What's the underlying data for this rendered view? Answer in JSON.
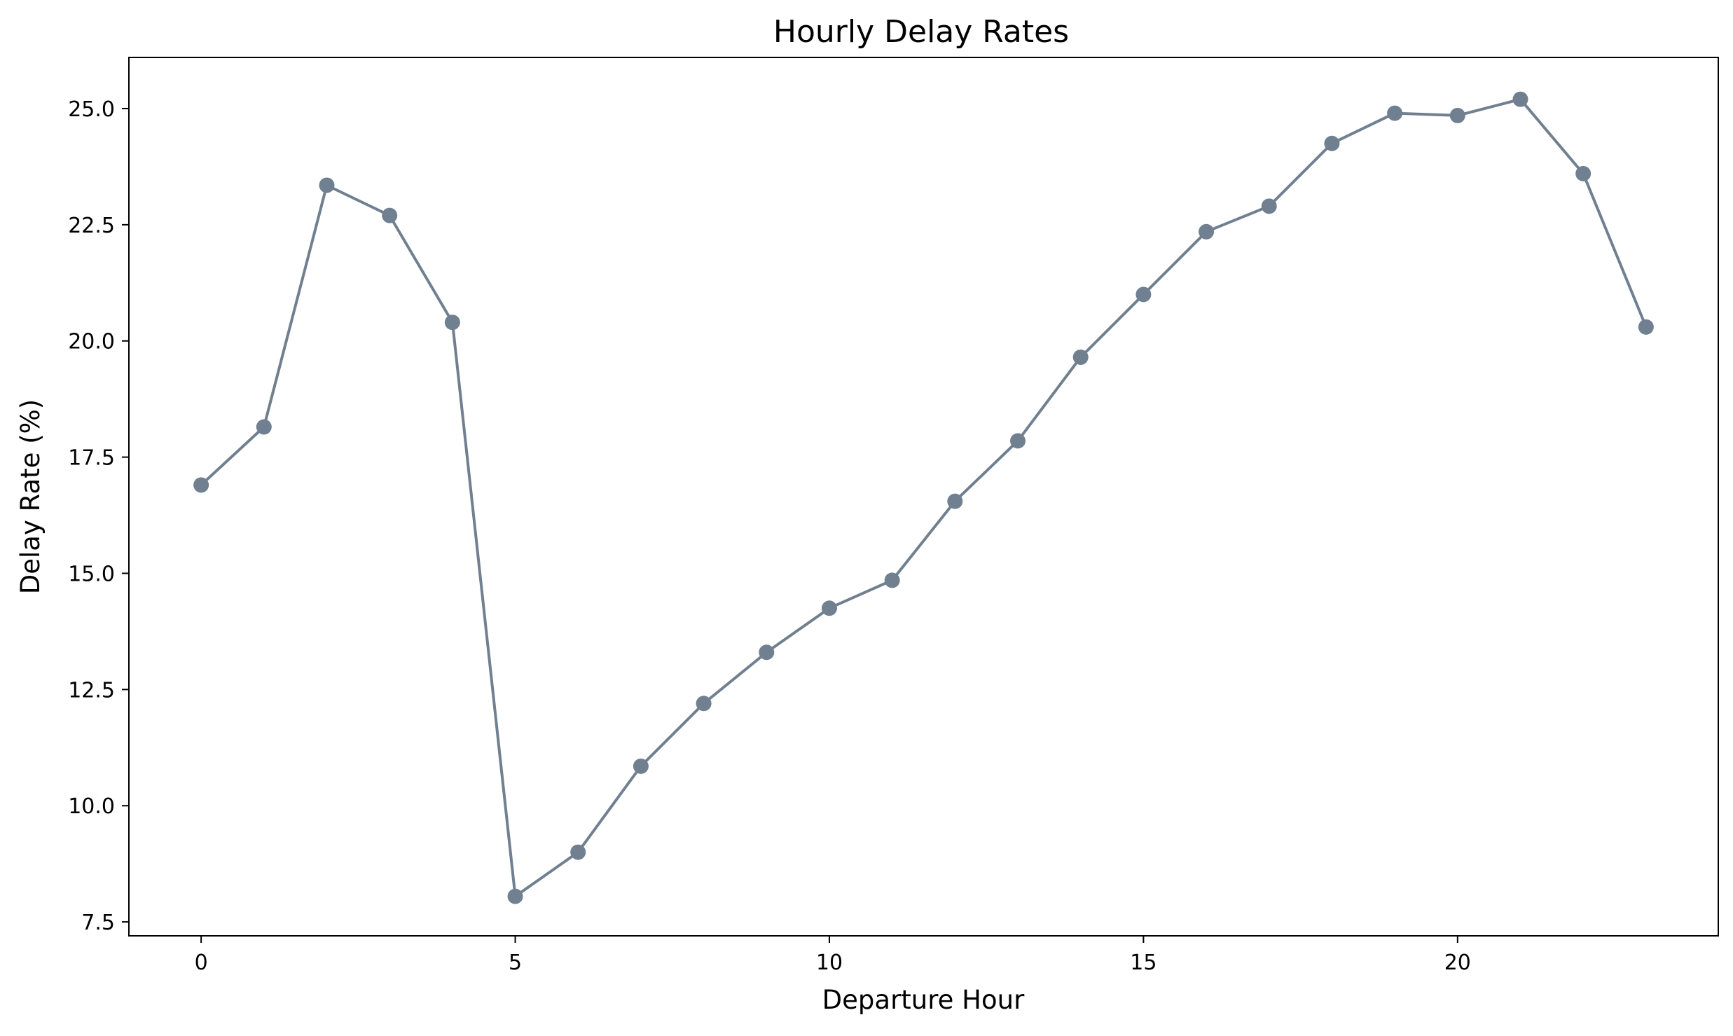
{
  "chart_data": {
    "type": "line",
    "title": "Hourly Delay Rates",
    "xlabel": "Departure Hour",
    "ylabel": "Delay Rate (%)",
    "xlim": [
      -1.15,
      24.15
    ],
    "ylim": [
      7.2,
      26.1
    ],
    "xticks": [
      0,
      5,
      10,
      15,
      20
    ],
    "xtick_labels": [
      "0",
      "5",
      "10",
      "15",
      "20"
    ],
    "yticks": [
      7.5,
      10.0,
      12.5,
      15.0,
      17.5,
      20.0,
      22.5,
      25.0
    ],
    "ytick_labels": [
      "7.5",
      "10.0",
      "12.5",
      "15.0",
      "17.5",
      "20.0",
      "22.5",
      "25.0"
    ],
    "grid": false,
    "legend": "none",
    "series": [
      {
        "color": "#708090",
        "marker": "circle",
        "x": [
          0,
          1,
          2,
          3,
          4,
          5,
          6,
          7,
          8,
          9,
          10,
          11,
          12,
          13,
          14,
          15,
          16,
          17,
          18,
          19,
          20,
          21,
          22,
          23
        ],
        "y": [
          16.9,
          18.15,
          23.35,
          22.7,
          20.4,
          8.05,
          9.0,
          10.85,
          12.2,
          13.3,
          14.25,
          14.85,
          16.55,
          17.85,
          19.65,
          21.0,
          22.35,
          22.9,
          24.25,
          24.9,
          24.85,
          25.2,
          23.6,
          20.3
        ]
      }
    ]
  }
}
